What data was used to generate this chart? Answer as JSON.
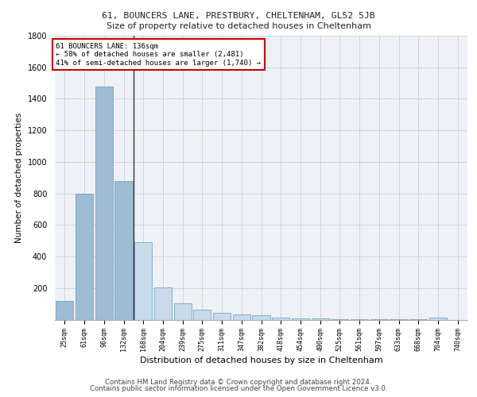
{
  "title1": "61, BOUNCERS LANE, PRESTBURY, CHELTENHAM, GL52 5JB",
  "title2": "Size of property relative to detached houses in Cheltenham",
  "xlabel": "Distribution of detached houses by size in Cheltenham",
  "ylabel": "Number of detached properties",
  "footer1": "Contains HM Land Registry data © Crown copyright and database right 2024.",
  "footer2": "Contains public sector information licensed under the Open Government Licence v3.0.",
  "annotation_line1": "61 BOUNCERS LANE: 136sqm",
  "annotation_line2": "← 58% of detached houses are smaller (2,481)",
  "annotation_line3": "41% of semi-detached houses are larger (1,740) →",
  "categories": [
    "25sqm",
    "61sqm",
    "96sqm",
    "132sqm",
    "168sqm",
    "204sqm",
    "239sqm",
    "275sqm",
    "311sqm",
    "347sqm",
    "382sqm",
    "418sqm",
    "454sqm",
    "490sqm",
    "525sqm",
    "561sqm",
    "597sqm",
    "633sqm",
    "668sqm",
    "704sqm",
    "740sqm"
  ],
  "values": [
    120,
    800,
    1480,
    880,
    490,
    205,
    105,
    65,
    42,
    35,
    28,
    15,
    10,
    7,
    5,
    3,
    3,
    2,
    2,
    15,
    0
  ],
  "bar_color_normal": "#c9daea",
  "bar_color_highlight": "#9dbdd4",
  "bar_edge_color": "#6699bb",
  "property_marker_index": 3,
  "background_color": "#eef2f7",
  "grid_color": "#c8c8c8",
  "annotation_box_color": "#cc0000",
  "ylim": [
    0,
    1800
  ],
  "yticks": [
    0,
    200,
    400,
    600,
    800,
    1000,
    1200,
    1400,
    1600,
    1800
  ]
}
